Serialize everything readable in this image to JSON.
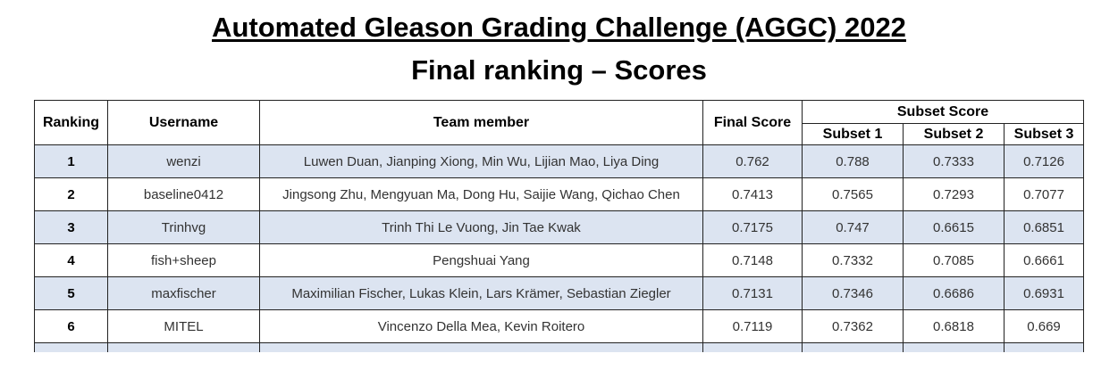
{
  "title": "Automated Gleason Grading Challenge (AGGC) 2022",
  "subtitle": "Final ranking – Scores",
  "colors": {
    "shaded_row": "#dce4f1",
    "border": "#222222"
  },
  "headers": {
    "ranking": "Ranking",
    "username": "Username",
    "team_member": "Team member",
    "final_score": "Final Score",
    "subset_score": "Subset Score",
    "subset1": "Subset 1",
    "subset2": "Subset 2",
    "subset3": "Subset 3"
  },
  "rows": [
    {
      "ranking": "1",
      "username": "wenzi",
      "team": "Luwen Duan, Jianping Xiong, Min Wu, Lijian Mao, Liya Ding",
      "final": "0.762",
      "s1": "0.788",
      "s2": "0.7333",
      "s3": "0.7126"
    },
    {
      "ranking": "2",
      "username": "baseline0412",
      "team": "Jingsong Zhu, Mengyuan Ma, Dong Hu, Saijie Wang, Qichao Chen",
      "final": "0.7413",
      "s1": "0.7565",
      "s2": "0.7293",
      "s3": "0.7077"
    },
    {
      "ranking": "3",
      "username": "Trinhvg",
      "team": "Trinh Thi Le Vuong, Jin Tae Kwak",
      "final": "0.7175",
      "s1": "0.747",
      "s2": "0.6615",
      "s3": "0.6851"
    },
    {
      "ranking": "4",
      "username": "fish+sheep",
      "team": "Pengshuai Yang",
      "final": "0.7148",
      "s1": "0.7332",
      "s2": "0.7085",
      "s3": "0.6661"
    },
    {
      "ranking": "5",
      "username": "maxfischer",
      "team": "Maximilian Fischer, Lukas Klein, Lars Krämer, Sebastian Ziegler",
      "final": "0.7131",
      "s1": "0.7346",
      "s2": "0.6686",
      "s3": "0.6931"
    },
    {
      "ranking": "6",
      "username": "MITEL",
      "team": "Vincenzo Della Mea, Kevin Roitero",
      "final": "0.7119",
      "s1": "0.7362",
      "s2": "0.6818",
      "s3": "0.669"
    }
  ]
}
